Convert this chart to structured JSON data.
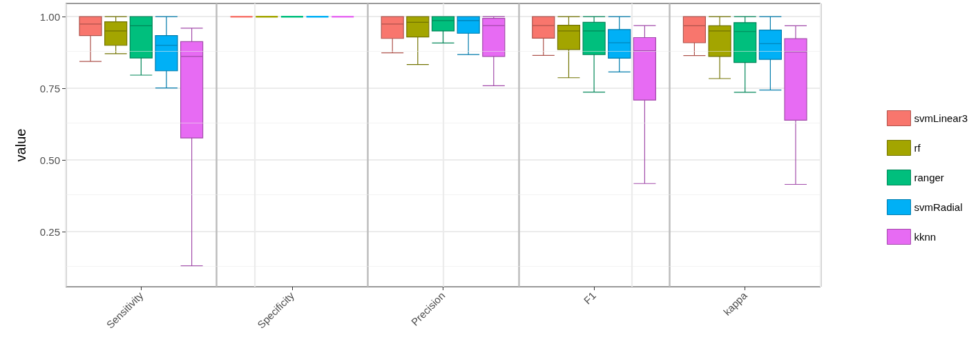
{
  "chart_data": {
    "type": "box",
    "ylabel": "value",
    "categories": [
      "Sensitivity",
      "Specificity",
      "Precision",
      "F1",
      "kappa"
    ],
    "ylim": [
      0.058,
      1.046
    ],
    "yticks": [
      {
        "value": 0.25,
        "label": "0.25"
      },
      {
        "value": 0.5,
        "label": "0.50"
      },
      {
        "value": 0.75,
        "label": "0.75"
      },
      {
        "value": 1,
        "label": "1.00"
      }
    ],
    "grid": true,
    "legend": "right",
    "series": [
      {
        "name": "svmLinear3",
        "color": "#f8766d",
        "boxes": [
          {
            "low": 0.844,
            "q1": 0.934,
            "median": 0.974,
            "q3": 1.0,
            "high": 1.0
          },
          {
            "low": 1.0,
            "q1": 1.0,
            "median": 1.0,
            "q3": 1.0,
            "high": 1.0
          },
          {
            "low": 0.874,
            "q1": 0.924,
            "median": 0.974,
            "q3": 1.0,
            "high": 1.0
          },
          {
            "low": 0.865,
            "q1": 0.925,
            "median": 0.969,
            "q3": 1.0,
            "high": 1.0
          },
          {
            "low": 0.864,
            "q1": 0.909,
            "median": 0.968,
            "q3": 1.0,
            "high": 1.0
          }
        ]
      },
      {
        "name": "rf",
        "color": "#a3a500",
        "boxes": [
          {
            "low": 0.871,
            "q1": 0.9,
            "median": 0.95,
            "q3": 0.982,
            "high": 1.0
          },
          {
            "low": 1.0,
            "q1": 1.0,
            "median": 1.0,
            "q3": 1.0,
            "high": 1.0
          },
          {
            "low": 0.833,
            "q1": 0.929,
            "median": 0.98,
            "q3": 1.0,
            "high": 1.0
          },
          {
            "low": 0.787,
            "q1": 0.885,
            "median": 0.95,
            "q3": 0.97,
            "high": 1.0
          },
          {
            "low": 0.784,
            "q1": 0.861,
            "median": 0.95,
            "q3": 0.968,
            "high": 1.0
          }
        ]
      },
      {
        "name": "ranger",
        "color": "#00bf7d",
        "boxes": [
          {
            "low": 0.796,
            "q1": 0.856,
            "median": 0.968,
            "q3": 1.0,
            "high": 1.0
          },
          {
            "low": 1.0,
            "q1": 1.0,
            "median": 1.0,
            "q3": 1.0,
            "high": 1.0
          },
          {
            "low": 0.908,
            "q1": 0.95,
            "median": 0.986,
            "q3": 1.0,
            "high": 1.0
          },
          {
            "low": 0.737,
            "q1": 0.868,
            "median": 0.95,
            "q3": 0.98,
            "high": 1.0
          },
          {
            "low": 0.736,
            "q1": 0.84,
            "median": 0.948,
            "q3": 0.979,
            "high": 1.0
          }
        ]
      },
      {
        "name": "svmRadial",
        "color": "#00b0f6",
        "boxes": [
          {
            "low": 0.751,
            "q1": 0.811,
            "median": 0.9,
            "q3": 0.934,
            "high": 1.0
          },
          {
            "low": 1.0,
            "q1": 1.0,
            "median": 1.0,
            "q3": 1.0,
            "high": 1.0
          },
          {
            "low": 0.868,
            "q1": 0.942,
            "median": 0.986,
            "q3": 1.0,
            "high": 1.0
          },
          {
            "low": 0.807,
            "q1": 0.855,
            "median": 0.909,
            "q3": 0.955,
            "high": 1.0
          },
          {
            "low": 0.744,
            "q1": 0.851,
            "median": 0.906,
            "q3": 0.953,
            "high": 1.0
          }
        ]
      },
      {
        "name": "kknn",
        "color": "#e76bf3",
        "boxes": [
          {
            "low": 0.131,
            "q1": 0.577,
            "median": 0.861,
            "q3": 0.913,
            "high": 0.96
          },
          {
            "low": 1.0,
            "q1": 1.0,
            "median": 1.0,
            "q3": 1.0,
            "high": 1.0
          },
          {
            "low": 0.759,
            "q1": 0.861,
            "median": 0.969,
            "q3": 0.994,
            "high": 1.0
          },
          {
            "low": 0.418,
            "q1": 0.709,
            "median": 0.881,
            "q3": 0.927,
            "high": 0.969
          },
          {
            "low": 0.415,
            "q1": 0.639,
            "median": 0.877,
            "q3": 0.923,
            "high": 0.968
          }
        ]
      }
    ]
  }
}
